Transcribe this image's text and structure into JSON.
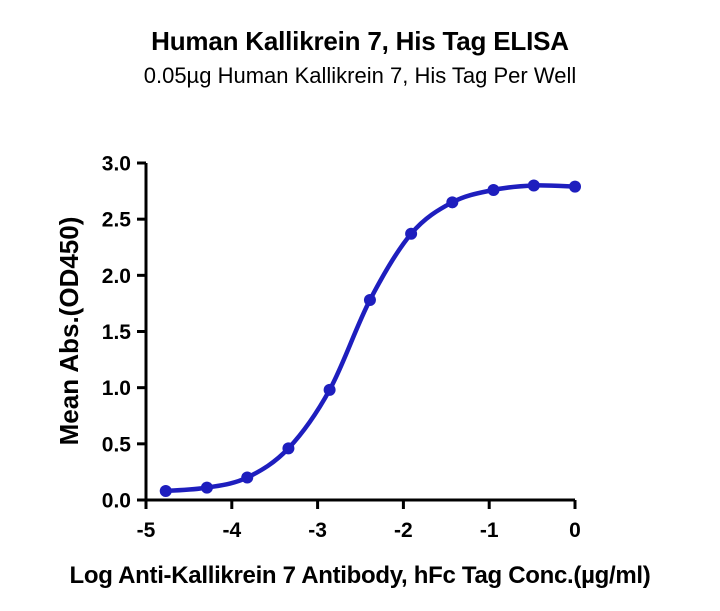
{
  "chart_data": {
    "type": "line",
    "title": "Human Kallikrein 7, His Tag ELISA",
    "subtitle": "0.05µg Human Kallikrein 7, His Tag Per Well",
    "xlabel": "Log Anti-Kallikrein 7 Antibody, hFc Tag Conc.(µg/ml)",
    "ylabel": "Mean Abs.(OD450)",
    "x": [
      -4.77,
      -4.29,
      -3.82,
      -3.34,
      -2.86,
      -2.39,
      -1.91,
      -1.43,
      -0.95,
      -0.48,
      0.0
    ],
    "y": [
      0.08,
      0.11,
      0.2,
      0.46,
      0.98,
      1.78,
      2.37,
      2.65,
      2.76,
      2.8,
      2.79
    ],
    "xlim": [
      -5,
      0
    ],
    "ylim": [
      0,
      3
    ],
    "x_ticks": [
      -5,
      -4,
      -3,
      -2,
      -1,
      0
    ],
    "x_tick_labels": [
      "-5",
      "-4",
      "-3",
      "-2",
      "-1",
      "0"
    ],
    "y_ticks": [
      0,
      0.5,
      1,
      1.5,
      2,
      2.5,
      3
    ],
    "y_tick_labels": [
      "0.0",
      "0.5",
      "1.0",
      "1.5",
      "2.0",
      "2.5",
      "3.0"
    ],
    "line_color": "#1E1EBE",
    "marker": "circle",
    "axis_color": "#000000",
    "grid": false,
    "legend": "none"
  }
}
